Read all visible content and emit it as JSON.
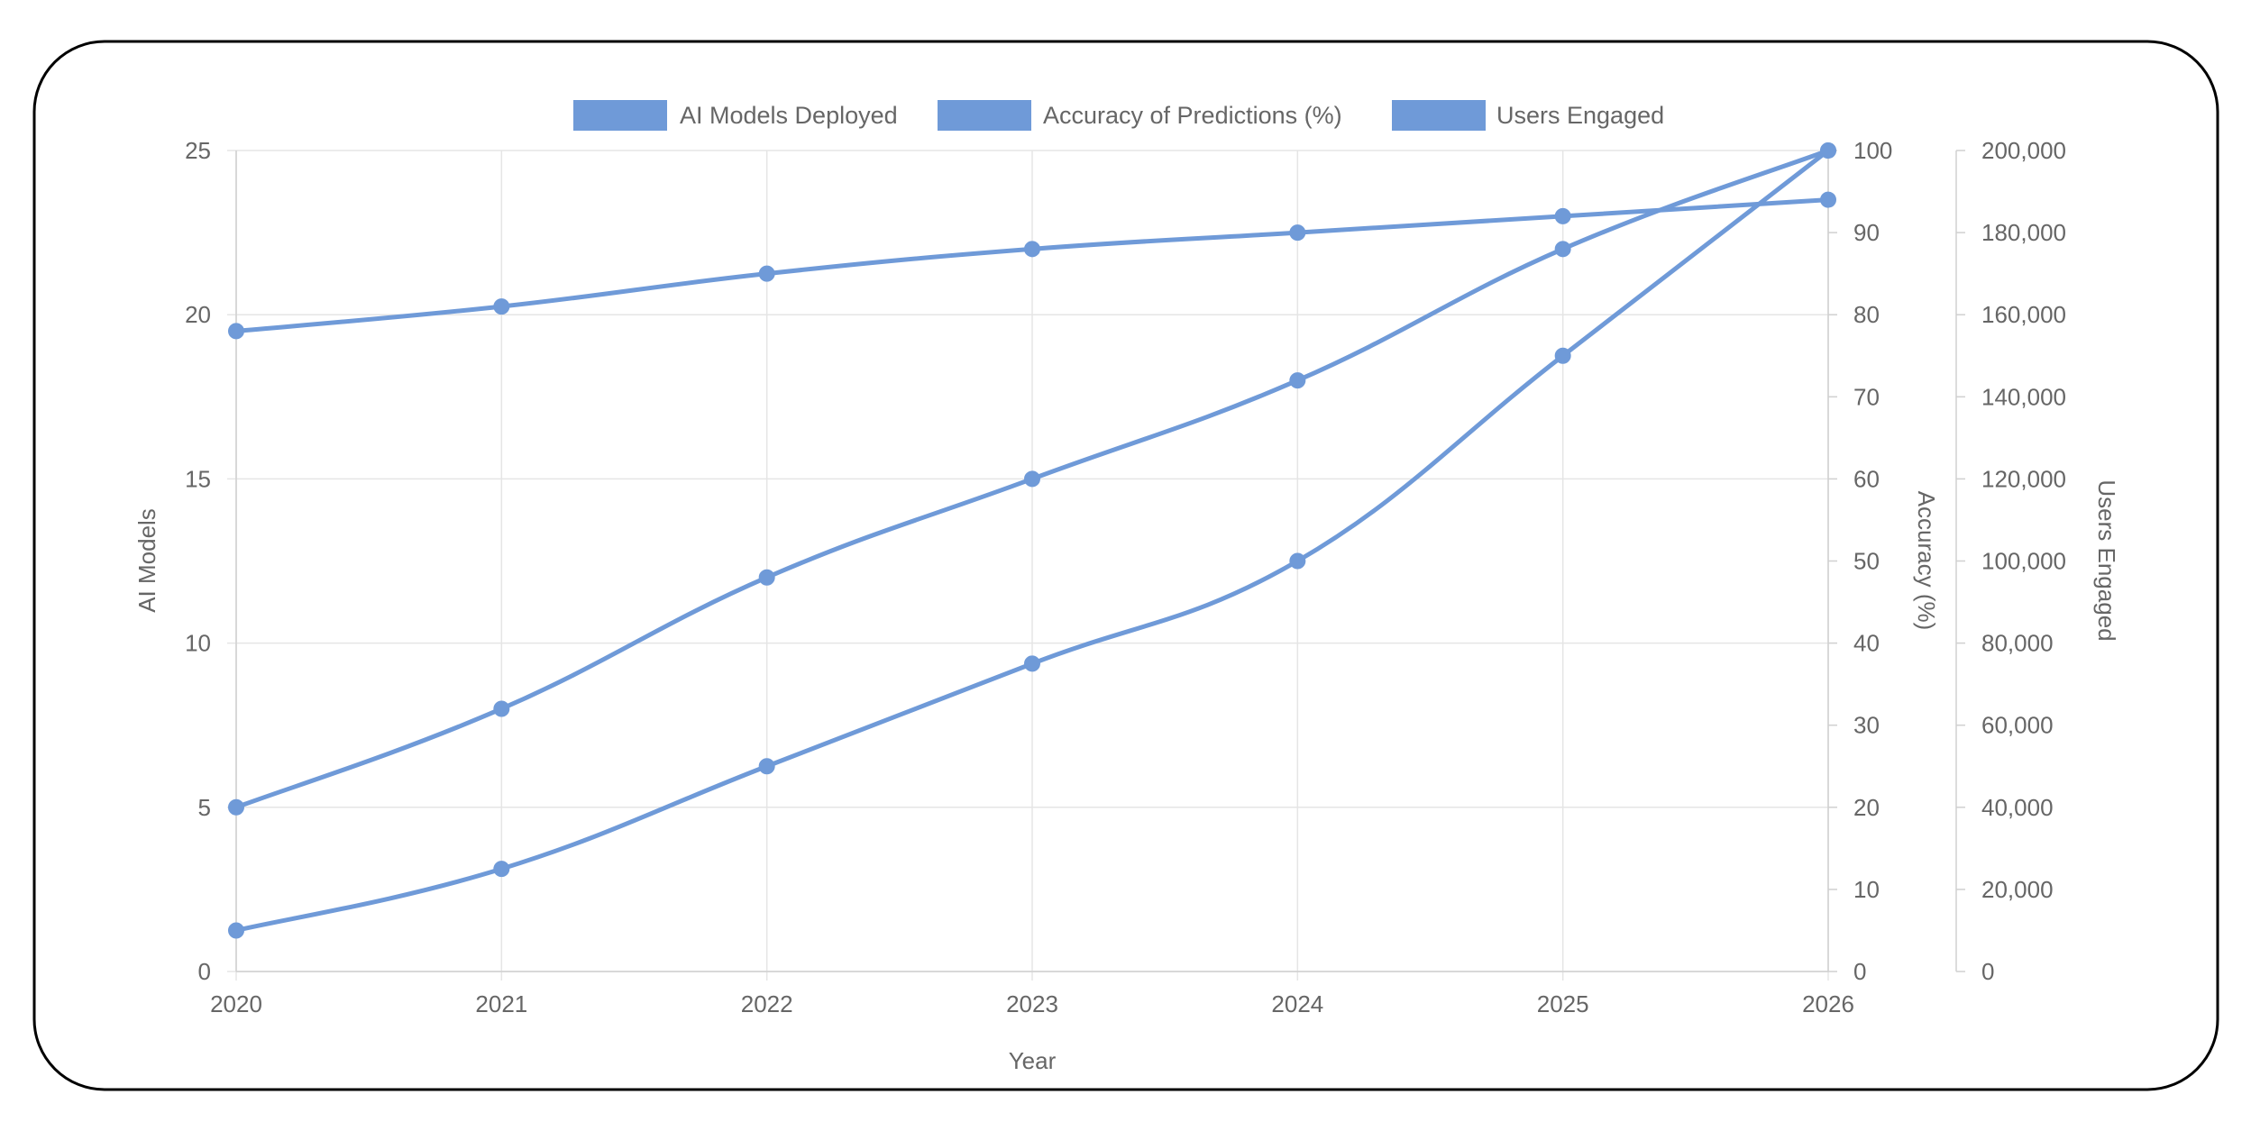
{
  "chart_data": {
    "type": "line",
    "title": "",
    "categories": [
      "2020",
      "2021",
      "2022",
      "2023",
      "2024",
      "2025",
      "2026"
    ],
    "xlabel": "Year",
    "axes": {
      "left": {
        "label": "AI Models",
        "ylim": [
          0,
          25
        ],
        "ticks": [
          0,
          5,
          10,
          15,
          20,
          25
        ],
        "tick_labels": [
          "0",
          "5",
          "10",
          "15",
          "20",
          "25"
        ],
        "grid": true
      },
      "right1": {
        "label": "Accuracy (%)",
        "ylim": [
          0,
          100
        ],
        "ticks": [
          0,
          10,
          20,
          30,
          40,
          50,
          60,
          70,
          80,
          90,
          100
        ],
        "tick_labels": [
          "0",
          "10",
          "20",
          "30",
          "40",
          "50",
          "60",
          "70",
          "80",
          "90",
          "100"
        ],
        "grid": false
      },
      "right2": {
        "label": "Users Engaged",
        "ylim": [
          0,
          200000
        ],
        "ticks": [
          0,
          20000,
          40000,
          60000,
          80000,
          100000,
          120000,
          140000,
          160000,
          180000,
          200000
        ],
        "tick_labels": [
          "0",
          "20,000",
          "40,000",
          "60,000",
          "80,000",
          "100,000",
          "120,000",
          "140,000",
          "160,000",
          "180,000",
          "200,000"
        ],
        "grid": false
      }
    },
    "series": [
      {
        "name": "AI Models Deployed",
        "axis": "left",
        "color": "#6f9ad8",
        "values": [
          5,
          8,
          12,
          15,
          18,
          22,
          25
        ]
      },
      {
        "name": "Accuracy of Predictions (%)",
        "axis": "right1",
        "color": "#6f9ad8",
        "values": [
          78,
          81,
          85,
          88,
          90,
          92,
          94
        ]
      },
      {
        "name": "Users Engaged",
        "axis": "right2",
        "color": "#6f9ad8",
        "values": [
          10000,
          25000,
          50000,
          75000,
          100000,
          150000,
          200000
        ]
      }
    ],
    "legend": {
      "placement": "top-center",
      "entries": [
        "AI Models Deployed",
        "Accuracy of Predictions (%)",
        "Users Engaged"
      ]
    },
    "colors": {
      "series": "#6f9ad8",
      "grid": "#e5e5e5",
      "text": "#666666",
      "frame": "#000000"
    }
  }
}
